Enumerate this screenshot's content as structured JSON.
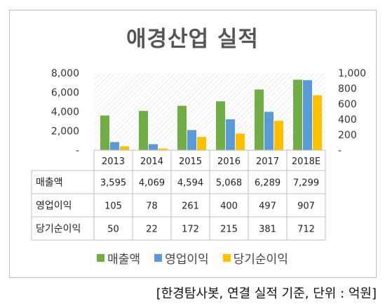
{
  "chart_data": {
    "type": "bar",
    "title": "애경산업 실적",
    "categories": [
      "2013",
      "2014",
      "2015",
      "2016",
      "2017",
      "2018E"
    ],
    "series": [
      {
        "name": "매출액",
        "axis": "left",
        "color": "#70ad47",
        "values": [
          3595,
          4069,
          4594,
          5068,
          6289,
          7299
        ]
      },
      {
        "name": "영업이익",
        "axis": "right",
        "color": "#5b9bd5",
        "values": [
          105,
          78,
          261,
          400,
          497,
          907
        ]
      },
      {
        "name": "당기순이익",
        "axis": "right",
        "color": "#ffc000",
        "values": [
          50,
          22,
          172,
          215,
          381,
          712
        ]
      }
    ],
    "table_values": [
      [
        "3,595",
        "4,069",
        "4,594",
        "5,068",
        "6,289",
        "7,299"
      ],
      [
        "105",
        "78",
        "261",
        "400",
        "497",
        "907"
      ],
      [
        "50",
        "22",
        "172",
        "215",
        "381",
        "712"
      ]
    ],
    "y_left": {
      "ylim": [
        0,
        8000
      ],
      "ticks": [
        "-",
        "2,000",
        "4,000",
        "6,000",
        "8,000"
      ]
    },
    "y_right": {
      "ylim": [
        0,
        1000
      ],
      "ticks": [
        "-",
        "200",
        "400",
        "600",
        "800",
        "1,000"
      ]
    },
    "legend_position": "bottom",
    "data_table": true,
    "grid": false,
    "plot_background": "diagonal-hatch"
  },
  "source_note": "[한경탐사봇, 연결 실적 기준, 단위 : 억원]"
}
